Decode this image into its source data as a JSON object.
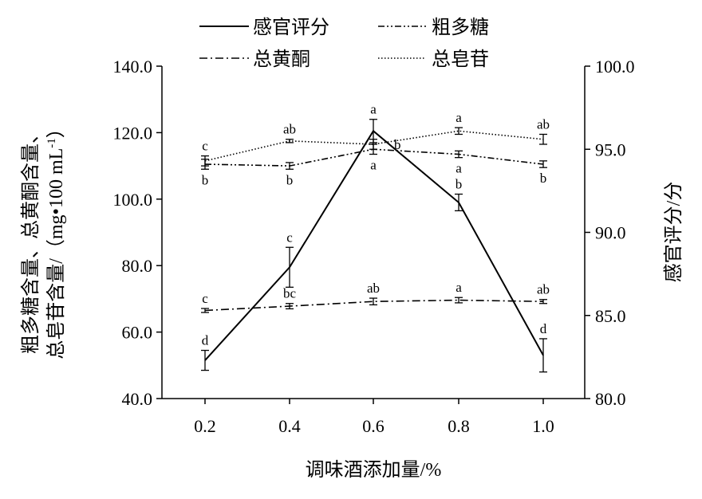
{
  "chart_data": {
    "type": "line",
    "xlabel": "调味酒添加量/%",
    "ylabel_left": [
      "粗多糖含量、总黄酮含量、",
      "总皂苷含量/（mg•100 mL",
      "-1",
      "）"
    ],
    "ylabel_right": "感官评分/分",
    "x": [
      "0.2",
      "0.4",
      "0.6",
      "0.8",
      "1.0"
    ],
    "ylim_left": [
      40,
      140
    ],
    "yticks_left": [
      "40.0",
      "60.0",
      "80.0",
      "100.0",
      "120.0",
      "140.0"
    ],
    "ylim_right": [
      80,
      100
    ],
    "yticks_right": [
      "80.0",
      "85.0",
      "90.0",
      "95.0",
      "100.0"
    ],
    "grid": false,
    "legend_position": "top",
    "series": [
      {
        "name": "感官评分",
        "axis": "right",
        "style": "solid",
        "values": [
          82.3,
          87.9,
          96.1,
          91.8,
          82.6
        ],
        "errors": [
          0.6,
          1.2,
          0.7,
          0.5,
          1.0
        ],
        "letters": [
          "d",
          "c",
          "a",
          "b",
          "d"
        ],
        "letter_pos": [
          "above",
          "above",
          "above",
          "above",
          "above"
        ]
      },
      {
        "name": "粗多糖",
        "axis": "left",
        "style": "dashdotdot",
        "values": [
          110.5,
          110.0,
          115.0,
          113.5,
          110.5
        ],
        "errors": [
          1.5,
          1.0,
          1.5,
          1.0,
          1.0
        ],
        "letters": [
          "b",
          "b",
          "a",
          "a",
          "b"
        ],
        "letter_pos": [
          "below",
          "below",
          "below",
          "below",
          "below"
        ]
      },
      {
        "name": "总黄酮",
        "axis": "left",
        "style": "dashdot",
        "values": [
          66.5,
          67.8,
          69.2,
          69.6,
          69.2
        ],
        "errors": [
          0.6,
          0.8,
          1.0,
          0.8,
          0.6
        ],
        "letters": [
          "c",
          "bc",
          "ab",
          "a",
          "ab"
        ],
        "letter_pos": [
          "above",
          "above",
          "above",
          "above",
          "above"
        ]
      },
      {
        "name": "总皂苷",
        "axis": "left",
        "style": "dotted",
        "values": [
          111.5,
          117.5,
          116.5,
          120.5,
          118.0
        ],
        "errors": [
          1.5,
          0.5,
          1.5,
          1.0,
          1.5
        ],
        "letters": [
          "c",
          "ab",
          "b",
          "a",
          "ab"
        ],
        "letter_pos": [
          "above",
          "above",
          "right",
          "above",
          "above"
        ]
      }
    ]
  }
}
